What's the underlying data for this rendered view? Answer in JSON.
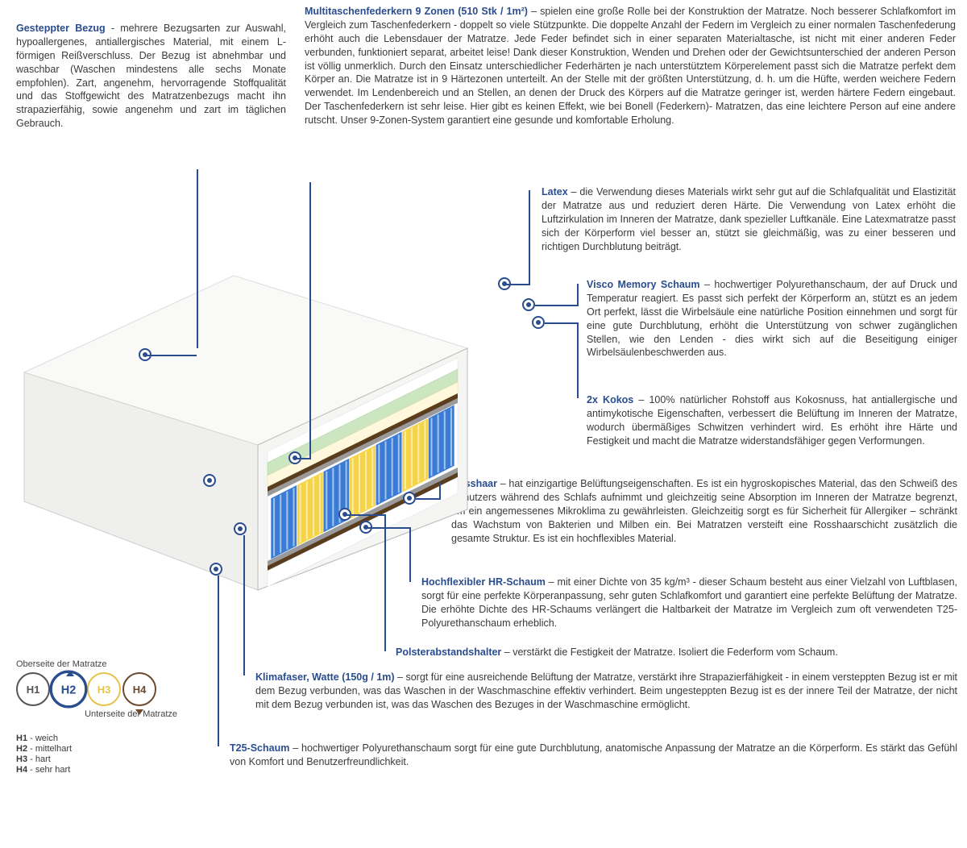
{
  "colors": {
    "title": "#2a4d8f",
    "text": "#3a3a3a",
    "marker": "#2a4d8f",
    "bg": "#ffffff"
  },
  "blocks": {
    "gesteppter": {
      "title": "Gesteppter Bezug",
      "body": " - mehrere Bezugsarten zur Auswahl, hypoallergenes, antiallergisches Material, mit einem L-förmigen Reißverschluss. Der Bezug ist abnehmbar und waschbar (Waschen mindestens alle sechs Monate empfohlen). Zart, angenehm, hervorragende Stoffqualität und das Stoffgewicht des Matratzenbezugs macht ihn strapazierfähig, sowie angenehm und zart im täglichen Gebrauch."
    },
    "multitasche": {
      "title": "Multitaschenfederkern 9 Zonen (510 Stk / 1m²)",
      "body": " – spielen eine große Rolle bei der Konstruktion der Matratze. Noch besserer Schlafkomfort im Vergleich zum Taschenfederkern - doppelt so viele Stützpunkte. Die doppelte Anzahl der Federn im Vergleich zu einer normalen Taschenfederung erhöht auch die Lebensdauer der Matratze. Jede Feder befindet sich in einer separaten Materialtasche, ist nicht mit einer anderen Feder verbunden, funktioniert separat, arbeitet leise! Dank dieser Konstruktion, Wenden und Drehen oder der Gewichtsunterschied der anderen Person ist völlig unmerklich. Durch den Einsatz unterschiedlicher Federhärten je nach unterstütztem Körperelement passt sich die Matratze perfekt dem Körper an. Die Matratze ist in 9 Härtezonen unterteilt. An der Stelle mit der größten Unterstützung, d. h. um die Hüfte, werden weichere Federn verwendet. Im Lendenbereich und an Stellen, an denen der Druck des Körpers auf die Matratze geringer ist, werden härtere Federn eingebaut. Der Taschenfederkern ist sehr leise. Hier gibt es keinen Effekt, wie bei Bonell (Federkern)- Matratzen, das eine leichtere Person auf eine andere rutscht. Unser 9-Zonen-System garantiert eine gesunde und komfortable Erholung."
    },
    "latex": {
      "title": "Latex",
      "body": " – die Verwendung dieses Materials wirkt sehr gut auf die Schlafqualität und Elastizität der Matratze aus und reduziert deren Härte. Die Verwendung von Latex erhöht die Luftzirkulation im Inneren der Matratze, dank spezieller Luftkanäle. Eine Latexmatratze passt sich der Körperform viel besser an, stützt sie gleichmäßig, was zu einer besseren und richtigen Durchblutung beiträgt."
    },
    "visco": {
      "title": "Visco Memory Schaum",
      "body": " – hochwertiger Polyurethanschaum, der auf Druck und Temperatur reagiert. Es passt sich perfekt der Körperform an, stützt es an jedem Ort perfekt, lässt die Wirbelsäule eine natürliche Position einnehmen und sorgt für eine gute Durchblutung, erhöht die Unterstützung von schwer zugänglichen Stellen, wie den Lenden - dies wirkt sich auf die Beseitigung einiger Wirbelsäulenbeschwerden aus."
    },
    "kokos": {
      "title": "2x Kokos",
      "body": " – 100% natürlicher Rohstoff aus Kokosnuss, hat antiallergische und antimykotische Eigenschaften, verbessert die Belüftung im Inneren der Matratze, wodurch übermäßiges Schwitzen verhindert wird. Es erhöht ihre Härte und Festigkeit und macht die Matratze widerstandsfähiger gegen Verformungen."
    },
    "rosshaar": {
      "title": "Rosshaar",
      "body": " – hat einzigartige Belüftungseigenschaften. Es ist ein hygroskopisches Material, das den Schweiß des Benutzers während des Schlafs aufnimmt und gleichzeitig seine Absorption im Inneren der Matratze begrenzt, um ein angemessenes Mikroklima zu gewährleisten. Gleichzeitig sorgt es für Sicherheit für Allergiker – schränkt das Wachstum von Bakterien und Milben ein. Bei Matratzen versteift eine Rosshaarschicht zusätzlich die gesamte Struktur. Es ist ein hochflexibles Material."
    },
    "hr": {
      "title": "Hochflexibler HR-Schaum",
      "body": " – mit einer Dichte von 35 kg/m³ - dieser Schaum besteht aus einer Vielzahl von Luftblasen, sorgt für eine perfekte Körperanpassung, sehr guten Schlafkomfort und garantiert eine perfekte Belüftung der Matratze. Die erhöhte Dichte des HR-Schaums verlängert die Haltbarkeit der Matratze im Vergleich zum oft verwendeten T25-Polyurethanschaum erheblich."
    },
    "polster": {
      "title": "Polsterabstandshalter",
      "body": " – verstärkt die Festigkeit der Matratze. Isoliert die Federform vom Schaum."
    },
    "klimafaser": {
      "title": "Klimafaser, Watte (150g / 1m)",
      "body": " – sorgt für eine ausreichende Belüftung der Matratze, verstärkt ihre Strapazierfähigkeit - in einem versteppten Bezug ist er mit dem Bezug verbunden, was das Waschen in der Waschmaschine effektiv verhindert. Beim ungesteppten Bezug ist es der innere Teil der Matratze, der nicht mit dem Bezug verbunden ist, was das Waschen des Bezuges in der Waschmaschine ermöglicht."
    },
    "t25": {
      "title": "T25-Schaum",
      "body": " – hochwertiger Polyurethanschaum sorgt für eine gute Durchblutung, anatomische Anpassung der Matratze an die Körperform. Es stärkt das Gefühl von Komfort und Benutzerfreundlichkeit."
    }
  },
  "legend": {
    "topLabel": "Oberseite der Matratze",
    "bottomLabel": "Unterseite der Matratze",
    "items": [
      {
        "code": "H1",
        "label": "weich",
        "color": "#555555"
      },
      {
        "code": "H2",
        "label": "mittelhart",
        "color": "#2a4d8f"
      },
      {
        "code": "H3",
        "label": "hart",
        "color": "#e8c34a"
      },
      {
        "code": "H4",
        "label": "sehr hart",
        "color": "#6b4a2f"
      }
    ]
  },
  "mattress": {
    "spring_colors": [
      "#3a7bd5",
      "#f5d547",
      "#3a7bd5",
      "#f5d547",
      "#3a7bd5",
      "#f5d547",
      "#3a7bd5"
    ],
    "layers": {
      "cover": "#f2f2f0",
      "latex": "#d9ead3",
      "visco": "#fff9e0",
      "kokos": "#5a3d1e",
      "felt": "#888888",
      "hr": "#ffffff",
      "base": "#e8e8e4"
    }
  }
}
